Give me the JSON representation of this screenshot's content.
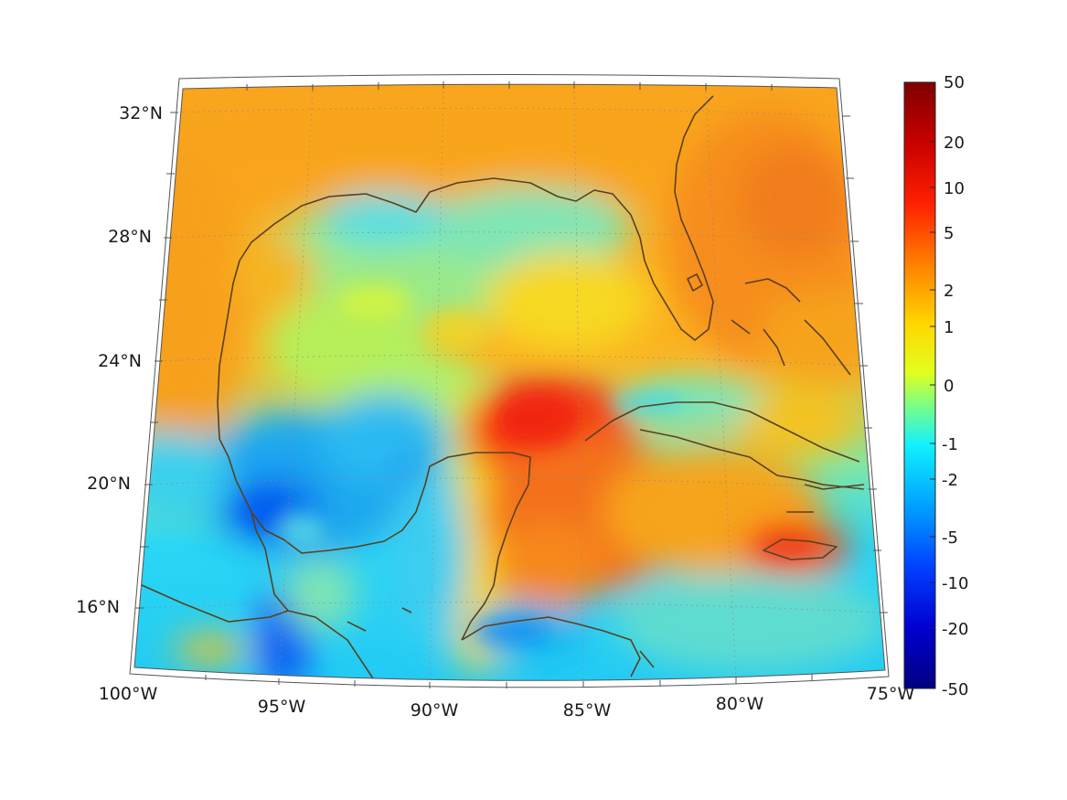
{
  "map": {
    "projection": "conic",
    "region": "Gulf of Mexico and Caribbean",
    "lon_labels": [
      "100°W",
      "95°W",
      "90°W",
      "85°W",
      "80°W",
      "75°W"
    ],
    "lat_labels": [
      "32°N",
      "28°N",
      "24°N",
      "20°N",
      "16°N"
    ],
    "gridlines": "dotted",
    "coastline_color": "#5a4020"
  },
  "colorbar": {
    "scale": "symmetric log",
    "colormap": "jet",
    "ticks": [
      "50",
      "20",
      "10",
      "5",
      "2",
      "1",
      "0",
      "-1",
      "-2",
      "-5",
      "-10",
      "-20",
      "-50"
    ],
    "range": [
      -50,
      50
    ],
    "colors": [
      "#7f0000",
      "#ff0000",
      "#ff8000",
      "#ffff00",
      "#80ff80",
      "#00ffff",
      "#0080ff",
      "#0000ff",
      "#00007f"
    ]
  }
}
